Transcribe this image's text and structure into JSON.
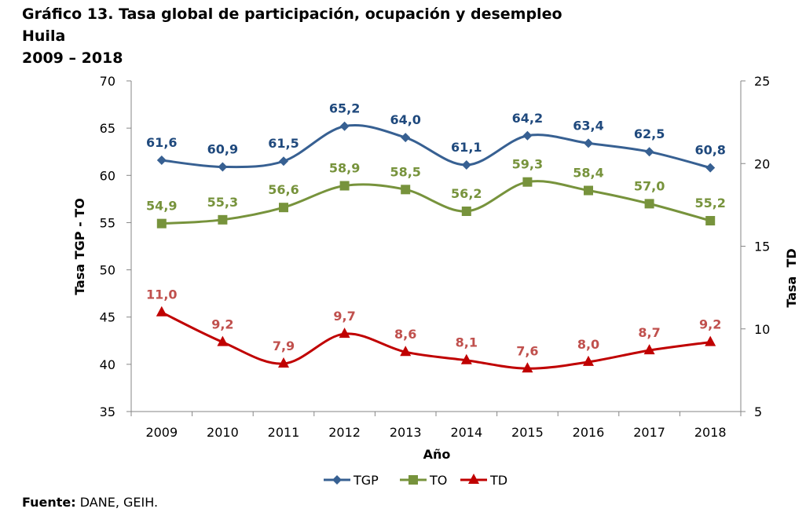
{
  "title": {
    "line1": "Gráfico 13. Tasa global de participación, ocupación y desempleo",
    "line2": "Huila",
    "line3": "2009 – 2018"
  },
  "source": {
    "label": "Fuente:",
    "text": "DANE, GEIH."
  },
  "chart_data": {
    "type": "line",
    "categories": [
      "2009",
      "2010",
      "2011",
      "2012",
      "2013",
      "2014",
      "2015",
      "2016",
      "2017",
      "2018"
    ],
    "xlabel": "Año",
    "ylabel": "Tasa TGP - TO",
    "y2label": "Tasa  TD",
    "ylim": [
      35,
      70
    ],
    "yticks": [
      35,
      40,
      45,
      50,
      55,
      60,
      65,
      70
    ],
    "y2lim": [
      5,
      25
    ],
    "y2ticks": [
      5,
      10,
      15,
      20,
      25
    ],
    "grid": false,
    "legend": "bottom-center",
    "series": [
      {
        "name": "TGP",
        "axis": "left",
        "color": "#376092",
        "label_color": "#1F497D",
        "marker": "diamond",
        "values": [
          61.6,
          60.9,
          61.5,
          65.2,
          64.0,
          61.1,
          64.2,
          63.4,
          62.5,
          60.8
        ],
        "labels": [
          "61,6",
          "60,9",
          "61,5",
          "65,2",
          "64,0",
          "61,1",
          "64,2",
          "63,4",
          "62,5",
          "60,8"
        ]
      },
      {
        "name": "TO",
        "axis": "left",
        "color": "#77933C",
        "label_color": "#77933C",
        "marker": "square",
        "values": [
          54.9,
          55.3,
          56.6,
          58.9,
          58.5,
          56.2,
          59.3,
          58.4,
          57.0,
          55.2
        ],
        "labels": [
          "54,9",
          "55,3",
          "56,6",
          "58,9",
          "58,5",
          "56,2",
          "59,3",
          "58,4",
          "57,0",
          "55,2"
        ]
      },
      {
        "name": "TD",
        "axis": "right",
        "color": "#C00000",
        "label_color": "#C0504D",
        "marker": "triangle",
        "values": [
          11.0,
          9.2,
          7.9,
          9.7,
          8.6,
          8.1,
          7.6,
          8.0,
          8.7,
          9.2
        ],
        "labels": [
          "11,0",
          "9,2",
          "7,9",
          "9,7",
          "8,6",
          "8,1",
          "7,6",
          "8,0",
          "8,7",
          "9,2"
        ]
      }
    ]
  }
}
